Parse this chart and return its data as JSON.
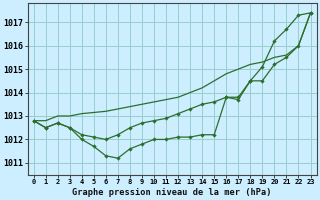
{
  "title": "Graphe pression niveau de la mer (hPa)",
  "background_color": "#cceeff",
  "grid_color": "#99cccc",
  "line_color": "#2d6e2d",
  "x_labels": [
    "0",
    "1",
    "2",
    "3",
    "4",
    "5",
    "6",
    "7",
    "8",
    "9",
    "10",
    "11",
    "12",
    "13",
    "14",
    "15",
    "16",
    "17",
    "18",
    "19",
    "20",
    "21",
    "22",
    "23"
  ],
  "ylim": [
    1010.5,
    1017.8
  ],
  "yticks": [
    1011,
    1012,
    1013,
    1014,
    1015,
    1016,
    1017
  ],
  "series1": [
    1012.8,
    1012.5,
    1012.7,
    1012.5,
    1012.0,
    1011.7,
    1011.3,
    1011.2,
    1011.6,
    1011.8,
    1012.0,
    1012.0,
    1012.1,
    1012.1,
    1012.2,
    1012.2,
    1013.8,
    1013.7,
    1014.5,
    1015.1,
    1016.2,
    1016.7,
    1017.3,
    1017.4
  ],
  "series2": [
    1012.8,
    1012.5,
    1012.7,
    1012.5,
    1012.2,
    1012.1,
    1012.0,
    1012.2,
    1012.5,
    1012.7,
    1012.8,
    1012.9,
    1013.1,
    1013.3,
    1013.5,
    1013.6,
    1013.8,
    1013.8,
    1014.5,
    1014.5,
    1015.2,
    1015.5,
    1016.0,
    1017.4
  ],
  "series3": [
    1012.8,
    1012.8,
    1013.0,
    1013.0,
    1013.1,
    1013.15,
    1013.2,
    1013.3,
    1013.4,
    1013.5,
    1013.6,
    1013.7,
    1013.8,
    1014.0,
    1014.2,
    1014.5,
    1014.8,
    1015.0,
    1015.2,
    1015.3,
    1015.5,
    1015.6,
    1016.0,
    1017.4
  ]
}
